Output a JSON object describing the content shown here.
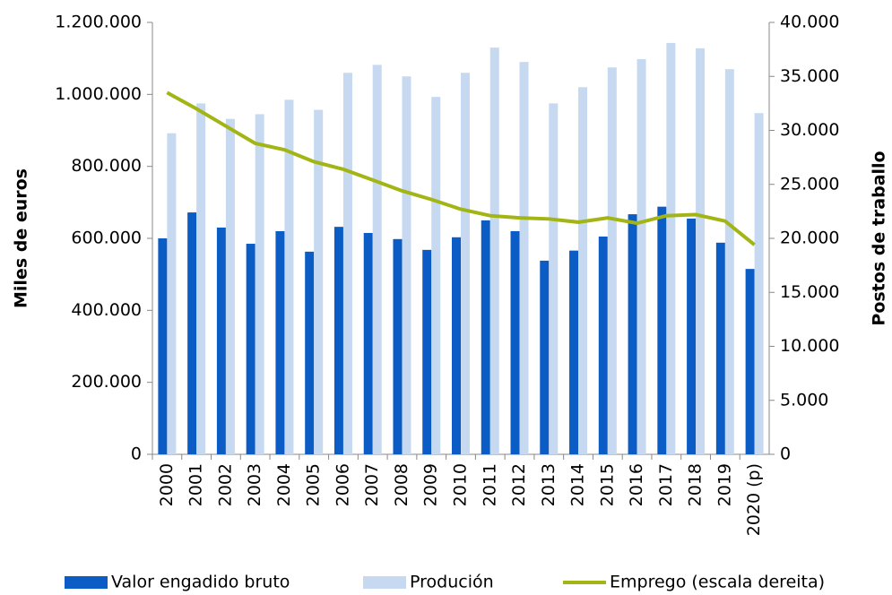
{
  "chart_data": {
    "type": "bar_line",
    "categories": [
      "2000",
      "2001",
      "2002",
      "2003",
      "2004",
      "2005",
      "2006",
      "2007",
      "2008",
      "2009",
      "2010",
      "2011",
      "2012",
      "2013",
      "2014",
      "2015",
      "2016",
      "2017",
      "2018",
      "2019",
      "2020 (p)"
    ],
    "series": [
      {
        "name": "Valor engadido bruto",
        "color": "#0b5cc5",
        "type": "bar",
        "values": [
          600000,
          672000,
          630000,
          585000,
          620000,
          563000,
          632000,
          615000,
          598000,
          568000,
          603000,
          650000,
          620000,
          538000,
          566000,
          605000,
          667000,
          688000,
          655000,
          588000,
          515000
        ]
      },
      {
        "name": "Produción",
        "color": "#c6d9f1",
        "type": "bar",
        "values": [
          892000,
          975000,
          932000,
          945000,
          985000,
          957000,
          1060000,
          1082000,
          1050000,
          993000,
          1060000,
          1130000,
          1090000,
          975000,
          1020000,
          1075000,
          1098000,
          1143000,
          1128000,
          1070000,
          948000
        ]
      },
      {
        "name": "Emprego (escala dereita)",
        "color": "#a2b514",
        "type": "line",
        "axis": "y2",
        "values": [
          33500,
          32000,
          30400,
          28800,
          28200,
          27100,
          26400,
          25400,
          24400,
          23600,
          22700,
          22100,
          21900,
          21800,
          21500,
          21900,
          21400,
          22100,
          22200,
          21600,
          19400
        ]
      }
    ],
    "ylabel": "Miles de euros",
    "y2label": "Postos de traballo",
    "ylim": [
      0,
      1200000
    ],
    "yticks": [
      0,
      {
        "value": 200000,
        "label": "200.000"
      },
      {
        "value": 400000,
        "label": "400.000"
      },
      {
        "value": 600000,
        "label": "600.000"
      },
      {
        "value": 800000,
        "label": "800.000"
      },
      {
        "value": 1000000,
        "label": "1.000.000"
      },
      {
        "value": 1200000,
        "label": "1.200.000"
      }
    ],
    "y2lim": [
      0,
      40000
    ],
    "y2ticks": [
      0,
      {
        "value": 5000,
        "label": "5.000"
      },
      {
        "value": 10000,
        "label": "10.000"
      },
      {
        "value": 15000,
        "label": "15.000"
      },
      {
        "value": 20000,
        "label": "20.000"
      },
      {
        "value": 25000,
        "label": "25.000"
      },
      {
        "value": 30000,
        "label": "30.000"
      },
      {
        "value": 35000,
        "label": "35.000"
      },
      {
        "value": 40000,
        "label": "40.000"
      }
    ],
    "legend": "bottom"
  }
}
